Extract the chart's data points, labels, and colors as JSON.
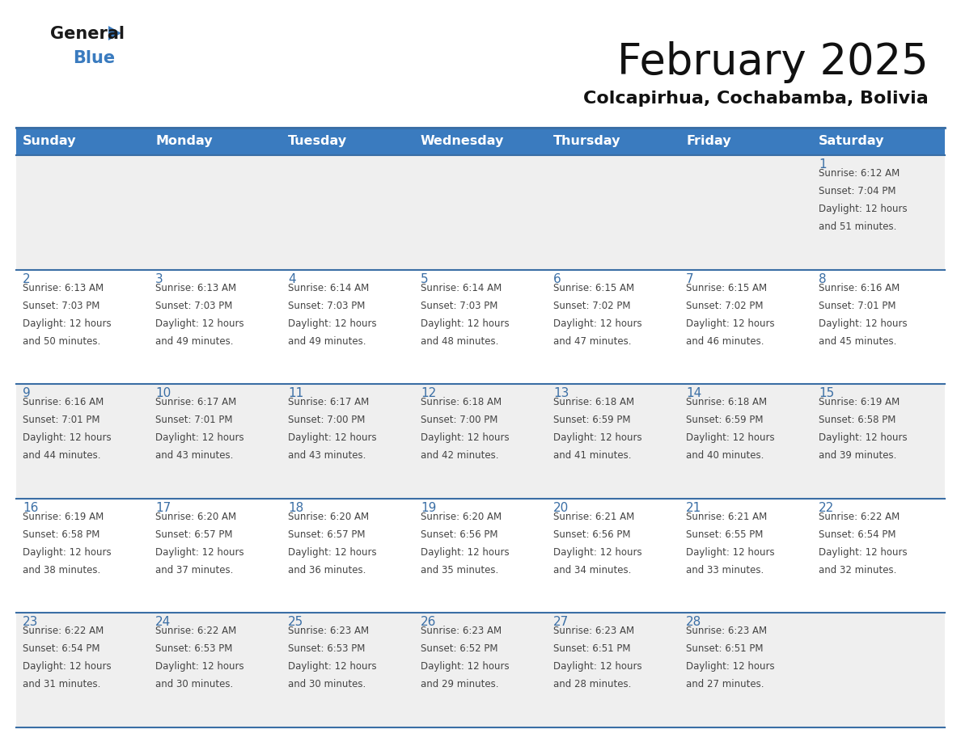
{
  "title": "February 2025",
  "subtitle": "Colcapirhua, Cochabamba, Bolivia",
  "header_bg_color": "#3a7bbf",
  "header_text_color": "#ffffff",
  "day_names": [
    "Sunday",
    "Monday",
    "Tuesday",
    "Wednesday",
    "Thursday",
    "Friday",
    "Saturday"
  ],
  "row_bg_colors": [
    "#efefef",
    "#ffffff",
    "#efefef",
    "#ffffff",
    "#efefef"
  ],
  "cell_border_color": "#3a6ea5",
  "day_number_color": "#3a6ea5",
  "text_color": "#444444",
  "logo_general_color": "#1a1a1a",
  "logo_blue_color": "#3a7bbf",
  "calendar": [
    [
      null,
      null,
      null,
      null,
      null,
      null,
      {
        "day": 1,
        "sunrise": "6:12 AM",
        "sunset": "7:04 PM",
        "daylight": "12 hours and 51 minutes."
      }
    ],
    [
      {
        "day": 2,
        "sunrise": "6:13 AM",
        "sunset": "7:03 PM",
        "daylight": "12 hours and 50 minutes."
      },
      {
        "day": 3,
        "sunrise": "6:13 AM",
        "sunset": "7:03 PM",
        "daylight": "12 hours and 49 minutes."
      },
      {
        "day": 4,
        "sunrise": "6:14 AM",
        "sunset": "7:03 PM",
        "daylight": "12 hours and 49 minutes."
      },
      {
        "day": 5,
        "sunrise": "6:14 AM",
        "sunset": "7:03 PM",
        "daylight": "12 hours and 48 minutes."
      },
      {
        "day": 6,
        "sunrise": "6:15 AM",
        "sunset": "7:02 PM",
        "daylight": "12 hours and 47 minutes."
      },
      {
        "day": 7,
        "sunrise": "6:15 AM",
        "sunset": "7:02 PM",
        "daylight": "12 hours and 46 minutes."
      },
      {
        "day": 8,
        "sunrise": "6:16 AM",
        "sunset": "7:01 PM",
        "daylight": "12 hours and 45 minutes."
      }
    ],
    [
      {
        "day": 9,
        "sunrise": "6:16 AM",
        "sunset": "7:01 PM",
        "daylight": "12 hours and 44 minutes."
      },
      {
        "day": 10,
        "sunrise": "6:17 AM",
        "sunset": "7:01 PM",
        "daylight": "12 hours and 43 minutes."
      },
      {
        "day": 11,
        "sunrise": "6:17 AM",
        "sunset": "7:00 PM",
        "daylight": "12 hours and 43 minutes."
      },
      {
        "day": 12,
        "sunrise": "6:18 AM",
        "sunset": "7:00 PM",
        "daylight": "12 hours and 42 minutes."
      },
      {
        "day": 13,
        "sunrise": "6:18 AM",
        "sunset": "6:59 PM",
        "daylight": "12 hours and 41 minutes."
      },
      {
        "day": 14,
        "sunrise": "6:18 AM",
        "sunset": "6:59 PM",
        "daylight": "12 hours and 40 minutes."
      },
      {
        "day": 15,
        "sunrise": "6:19 AM",
        "sunset": "6:58 PM",
        "daylight": "12 hours and 39 minutes."
      }
    ],
    [
      {
        "day": 16,
        "sunrise": "6:19 AM",
        "sunset": "6:58 PM",
        "daylight": "12 hours and 38 minutes."
      },
      {
        "day": 17,
        "sunrise": "6:20 AM",
        "sunset": "6:57 PM",
        "daylight": "12 hours and 37 minutes."
      },
      {
        "day": 18,
        "sunrise": "6:20 AM",
        "sunset": "6:57 PM",
        "daylight": "12 hours and 36 minutes."
      },
      {
        "day": 19,
        "sunrise": "6:20 AM",
        "sunset": "6:56 PM",
        "daylight": "12 hours and 35 minutes."
      },
      {
        "day": 20,
        "sunrise": "6:21 AM",
        "sunset": "6:56 PM",
        "daylight": "12 hours and 34 minutes."
      },
      {
        "day": 21,
        "sunrise": "6:21 AM",
        "sunset": "6:55 PM",
        "daylight": "12 hours and 33 minutes."
      },
      {
        "day": 22,
        "sunrise": "6:22 AM",
        "sunset": "6:54 PM",
        "daylight": "12 hours and 32 minutes."
      }
    ],
    [
      {
        "day": 23,
        "sunrise": "6:22 AM",
        "sunset": "6:54 PM",
        "daylight": "12 hours and 31 minutes."
      },
      {
        "day": 24,
        "sunrise": "6:22 AM",
        "sunset": "6:53 PM",
        "daylight": "12 hours and 30 minutes."
      },
      {
        "day": 25,
        "sunrise": "6:23 AM",
        "sunset": "6:53 PM",
        "daylight": "12 hours and 30 minutes."
      },
      {
        "day": 26,
        "sunrise": "6:23 AM",
        "sunset": "6:52 PM",
        "daylight": "12 hours and 29 minutes."
      },
      {
        "day": 27,
        "sunrise": "6:23 AM",
        "sunset": "6:51 PM",
        "daylight": "12 hours and 28 minutes."
      },
      {
        "day": 28,
        "sunrise": "6:23 AM",
        "sunset": "6:51 PM",
        "daylight": "12 hours and 27 minutes."
      },
      null
    ]
  ]
}
